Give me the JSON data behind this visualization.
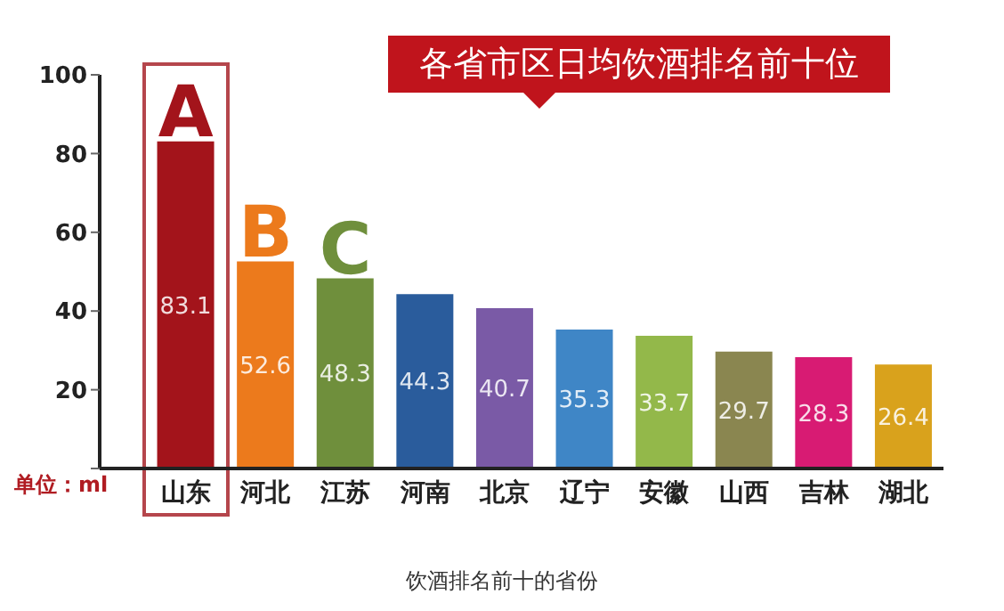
{
  "chart_data": {
    "type": "bar",
    "title": "各省市区日均饮酒排名前十位",
    "ylabel": "单位：ml",
    "categories": [
      "山东",
      "河北",
      "江苏",
      "河南",
      "北京",
      "辽宁",
      "安徽",
      "山西",
      "吉林",
      "湖北"
    ],
    "values": [
      83.1,
      52.6,
      48.3,
      44.3,
      40.7,
      35.3,
      33.7,
      29.7,
      28.3,
      26.4
    ],
    "colors": [
      "#a3141b",
      "#ec7a1c",
      "#6f8f3c",
      "#2a5c9c",
      "#7a5aa6",
      "#3f86c6",
      "#93b84a",
      "#8a8650",
      "#d81b73",
      "#d9a21c"
    ],
    "ylim": [
      0,
      100
    ],
    "yticks": [
      {
        "value": 0,
        "label": null
      },
      20,
      40,
      60,
      80,
      100
    ],
    "grid": false,
    "data_labels": true,
    "annotations": [
      {
        "text": "A",
        "x": "山东",
        "y": 83.1
      },
      {
        "text": "B",
        "x": "河北",
        "y": 52.6
      },
      {
        "text": "C",
        "x": "江苏",
        "y": 48.3
      },
      "饮酒排名前十的省份"
    ]
  }
}
